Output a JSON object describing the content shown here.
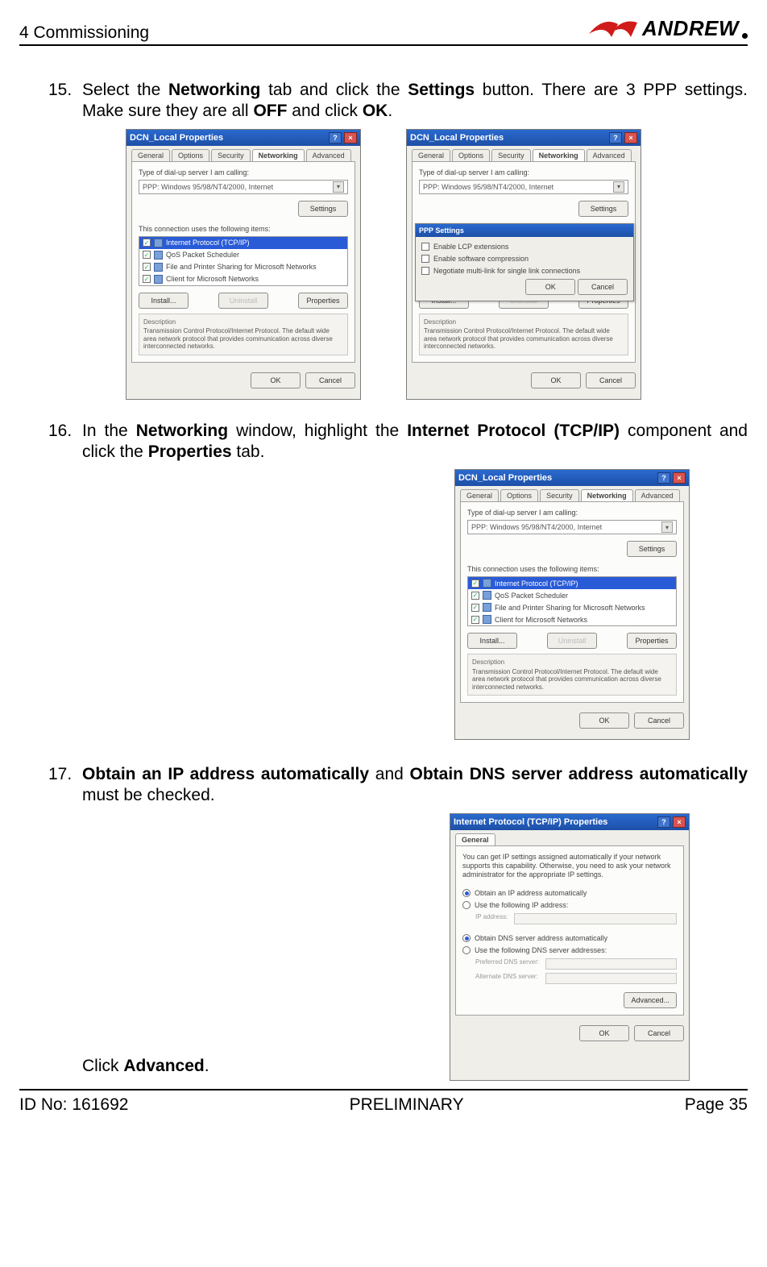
{
  "header": {
    "section": "4 Commissioning",
    "brand": "ANDREW"
  },
  "footer": {
    "id": "ID No: 161692",
    "status": "PRELIMINARY",
    "page": "Page 35"
  },
  "logo": {
    "stroke": "#d11a1a"
  },
  "steps": {
    "s15": {
      "num": "15.",
      "t1": "Select the ",
      "b1": "Networking",
      "t2": " tab and click the ",
      "b2": "Settings",
      "t3": " button. There are 3 PPP settings. Make sure they are all ",
      "b3": "OFF",
      "t4": " and click ",
      "b4": "OK",
      "t5": "."
    },
    "s16": {
      "num": "16.",
      "t1": "In the ",
      "b1": "Networking",
      "t2": " window, highlight the ",
      "b2": "Internet Protocol (TCP/IP)",
      "t3": " component and click the ",
      "b3": "Properties",
      "t4": " tab."
    },
    "s17": {
      "num": "17.",
      "b1": "Obtain an IP address automatically",
      "t1": " and ",
      "b2": "Obtain DNS server address automatically",
      "t2": " must be checked."
    },
    "clickadv": {
      "t1": "Click ",
      "b1": "Advanced",
      "t2": "."
    }
  },
  "dlg": {
    "winTitle": "DCN_Local Properties",
    "tabs": {
      "general": "General",
      "options": "Options",
      "security": "Security",
      "networking": "Networking",
      "advanced": "Advanced"
    },
    "dialupLabel": "Type of dial-up server I am calling:",
    "dialupValue": "PPP: Windows 95/98/NT4/2000, Internet",
    "settingsBtn": "Settings",
    "usesItemsLabel": "This connection uses the following items:",
    "items": {
      "tcpip": "Internet Protocol (TCP/IP)",
      "qos": "QoS Packet Scheduler",
      "fps": "File and Printer Sharing for Microsoft Networks",
      "client": "Client for Microsoft Networks"
    },
    "install": "Install...",
    "uninstall": "Uninstall",
    "properties": "Properties",
    "descH": "Description",
    "descT": "Transmission Control Protocol/Internet Protocol. The default wide area network protocol that provides communication across diverse interconnected networks.",
    "ok": "OK",
    "cancel": "Cancel",
    "ppp": {
      "title": "PPP Settings",
      "o1": "Enable LCP extensions",
      "o2": "Enable software compression",
      "o3": "Negotiate multi-link for single link connections"
    },
    "ip": {
      "title": "Internet Protocol (TCP/IP) Properties",
      "tab": "General",
      "intro": "You can get IP settings assigned automatically if your network supports this capability. Otherwise, you need to ask your network administrator for the appropriate IP settings.",
      "r1": "Obtain an IP address automatically",
      "r2": "Use the following IP address:",
      "ipaddr": "IP address:",
      "r3": "Obtain DNS server address automatically",
      "r4": "Use the following DNS server addresses:",
      "pdns": "Preferred DNS server:",
      "adns": "Alternate DNS server:",
      "advanced": "Advanced..."
    }
  },
  "sizes": {
    "net_w": 292,
    "net_h": 336,
    "ip_w": 298,
    "ip_h": 332
  }
}
